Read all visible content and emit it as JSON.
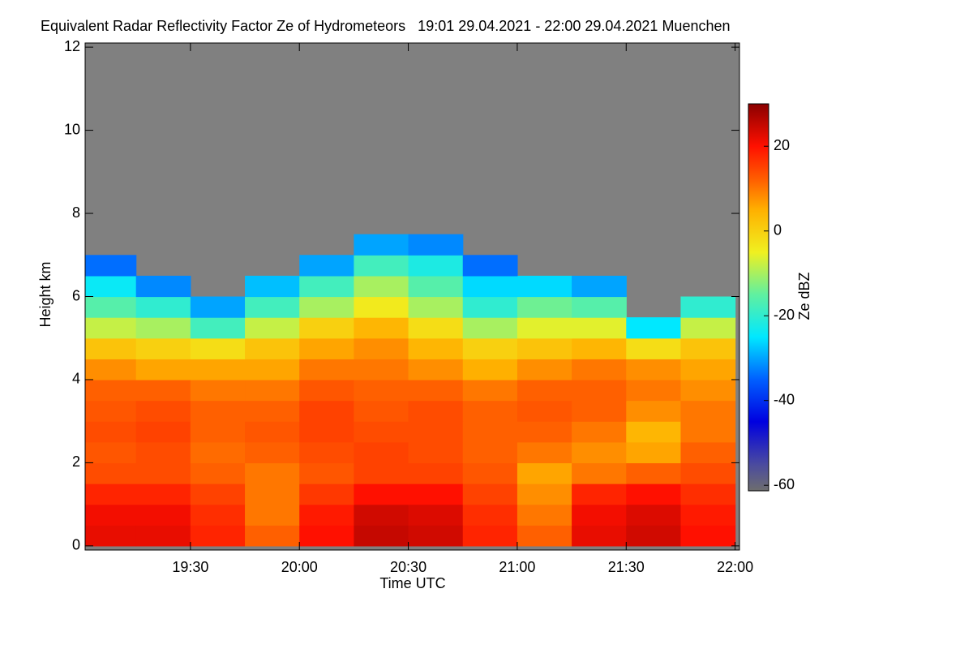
{
  "chart_data": {
    "type": "heatmap",
    "title": "Equivalent Radar Reflectivity Factor Ze of Hydrometeors   19:01 29.04.2021 - 22:00 29.04.2021 Muenchen",
    "x_label": "Time UTC",
    "y_label": "Height km",
    "colorbar_label": "Ze dBZ",
    "background_color": "#808080",
    "xlim": [
      19.0167,
      22.02
    ],
    "xticks": [
      {
        "value": 19.5,
        "label": "19:30"
      },
      {
        "value": 20,
        "label": "20:00"
      },
      {
        "value": 20.5,
        "label": "20:30"
      },
      {
        "value": 21,
        "label": "21:00"
      },
      {
        "value": 21.5,
        "label": "21:30"
      },
      {
        "value": 22,
        "label": "22:00"
      }
    ],
    "ylim": [
      -0.1,
      12.1
    ],
    "yticks": [
      0,
      2,
      4,
      6,
      8,
      10,
      12
    ],
    "clim": [
      -61.3,
      30
    ],
    "cticks": [
      -60,
      -40,
      -20,
      0,
      20
    ],
    "colormap": [
      {
        "value": -61.3,
        "color": "#6e6e6e"
      },
      {
        "value": -55,
        "color": "#4a4aa0"
      },
      {
        "value": -45,
        "color": "#0000e0"
      },
      {
        "value": -35,
        "color": "#0060ff"
      },
      {
        "value": -25,
        "color": "#00e8ff"
      },
      {
        "value": -15,
        "color": "#60f0a0"
      },
      {
        "value": -5,
        "color": "#f0f020"
      },
      {
        "value": 5,
        "color": "#ffb000"
      },
      {
        "value": 12,
        "color": "#ff6000"
      },
      {
        "value": 20,
        "color": "#ff1000"
      },
      {
        "value": 30,
        "color": "#8a0000"
      }
    ],
    "x": [
      19.125,
      19.375,
      19.625,
      19.875,
      20.125,
      20.375,
      20.625,
      20.875,
      21.125,
      21.375,
      21.625,
      21.875
    ],
    "x_step": 0.25,
    "y": [
      0.25,
      0.75,
      1.25,
      1.75,
      2.25,
      2.75,
      3.25,
      3.75,
      4.25,
      4.75,
      5.25,
      5.75,
      6.25,
      6.75,
      7.25
    ],
    "y_step": 0.5,
    "values": [
      [
        22,
        22,
        18,
        12,
        20,
        25,
        24,
        18,
        12,
        22,
        24,
        20
      ],
      [
        21,
        21,
        17,
        10,
        19,
        24,
        23,
        17,
        10,
        21,
        23,
        19
      ],
      [
        18,
        18,
        15,
        10,
        16,
        20,
        20,
        15,
        8,
        18,
        20,
        17
      ],
      [
        14,
        14,
        12,
        10,
        13,
        15,
        15,
        13,
        6,
        10,
        12,
        14
      ],
      [
        13,
        14,
        11,
        12,
        14,
        15,
        14,
        12,
        10,
        8,
        6,
        12
      ],
      [
        14,
        15,
        12,
        13,
        15,
        14,
        14,
        12,
        12,
        10,
        4,
        10
      ],
      [
        13,
        14,
        12,
        12,
        15,
        13,
        14,
        12,
        13,
        12,
        8,
        10
      ],
      [
        12,
        12,
        10,
        10,
        13,
        12,
        12,
        10,
        12,
        12,
        10,
        8
      ],
      [
        8,
        6,
        6,
        6,
        10,
        10,
        8,
        5,
        8,
        10,
        8,
        6
      ],
      [
        2,
        0,
        -2,
        2,
        6,
        8,
        4,
        0,
        2,
        4,
        -2,
        2
      ],
      [
        -8,
        -10,
        -18,
        -8,
        0,
        4,
        -2,
        -10,
        -6,
        -6,
        -25,
        -8
      ],
      [
        -16,
        -20,
        -30,
        -18,
        -10,
        -4,
        -10,
        -20,
        -14,
        -16,
        null,
        -20
      ],
      [
        -24,
        -32,
        null,
        -28,
        -18,
        -10,
        -16,
        -26,
        -26,
        -30,
        null,
        null
      ],
      [
        -34,
        null,
        null,
        null,
        -30,
        -18,
        -22,
        -34,
        null,
        null,
        null,
        null
      ],
      [
        null,
        null,
        null,
        null,
        null,
        -30,
        -32,
        null,
        null,
        null,
        null,
        null
      ]
    ]
  }
}
